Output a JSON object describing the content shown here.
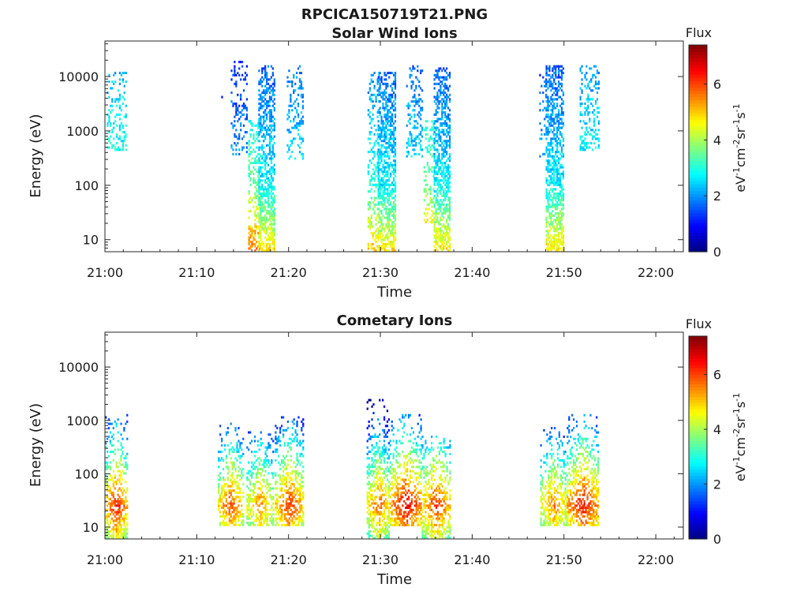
{
  "figure_title": "RPCICA150719T21.PNG",
  "chart_data": [
    {
      "type": "heatmap",
      "title": "Solar Wind Ions",
      "xlabel": "Time",
      "ylabel": "Energy (eV)",
      "x_ticks": [
        "21:00",
        "21:10",
        "21:20",
        "21:30",
        "21:40",
        "21:50",
        "22:00"
      ],
      "x_range_minutes": [
        0,
        63
      ],
      "y_ticks": [
        "10",
        "100",
        "1000",
        "10000"
      ],
      "y_scale": "log",
      "y_range": [
        6,
        45000
      ],
      "colorbar": {
        "label": "Flux",
        "unit": "eV-1cm-2sr-1s-1",
        "ticks": [
          "0",
          "2",
          "4",
          "6"
        ],
        "range": [
          0,
          7.4
        ],
        "colormap": "jet"
      },
      "grid": false,
      "bursts": [
        {
          "t_start": 0.2,
          "t_end": 2.3,
          "e_low": 400,
          "e_high": 12000,
          "flux": 2.8,
          "density": 0.35,
          "spread": 0
        },
        {
          "t_start": 12.5,
          "t_end": 12.8,
          "e_low": 3500,
          "e_high": 4500,
          "flux": 1.2,
          "density": 0.5,
          "spread": 0
        },
        {
          "t_start": 13.7,
          "t_end": 15.4,
          "e_low": 300,
          "e_high": 18000,
          "flux": 1.8,
          "density": 0.3,
          "spread": 0
        },
        {
          "t_start": 15.6,
          "t_end": 16.8,
          "e_low": 6,
          "e_high": 1500,
          "flux": 3.0,
          "density": 0.45,
          "spread": 0
        },
        {
          "t_start": 16.7,
          "t_end": 18.4,
          "e_low": 6,
          "e_high": 15000,
          "flux": 2.2,
          "density": 0.75,
          "spread": 0
        },
        {
          "t_start": 19.8,
          "t_end": 21.6,
          "e_low": 250,
          "e_high": 15000,
          "flux": 2.3,
          "density": 0.3,
          "spread": 0
        },
        {
          "t_start": 28.6,
          "t_end": 29.8,
          "e_low": 6,
          "e_high": 12000,
          "flux": 2.5,
          "density": 0.35,
          "spread": 0
        },
        {
          "t_start": 29.7,
          "t_end": 31.6,
          "e_low": 6,
          "e_high": 12000,
          "flux": 2.2,
          "density": 0.75,
          "spread": 0
        },
        {
          "t_start": 32.8,
          "t_end": 34.6,
          "e_low": 300,
          "e_high": 15000,
          "flux": 2.3,
          "density": 0.35,
          "spread": 0
        },
        {
          "t_start": 34.7,
          "t_end": 35.8,
          "e_low": 20,
          "e_high": 1500,
          "flux": 3.0,
          "density": 0.35,
          "spread": 0
        },
        {
          "t_start": 35.8,
          "t_end": 37.6,
          "e_low": 6,
          "e_high": 14000,
          "flux": 2.2,
          "density": 0.75,
          "spread": 0
        },
        {
          "t_start": 47.3,
          "t_end": 48.0,
          "e_low": 300,
          "e_high": 12000,
          "flux": 2.0,
          "density": 0.2,
          "spread": 0
        },
        {
          "t_start": 48.0,
          "t_end": 50.0,
          "e_low": 6,
          "e_high": 15000,
          "flux": 2.2,
          "density": 0.75,
          "spread": 0
        },
        {
          "t_start": 51.7,
          "t_end": 53.8,
          "e_low": 400,
          "e_high": 16000,
          "flux": 2.6,
          "density": 0.35,
          "spread": 0
        }
      ]
    },
    {
      "type": "heatmap",
      "title": "Cometary Ions",
      "xlabel": "Time",
      "ylabel": "Energy (eV)",
      "x_ticks": [
        "21:00",
        "21:10",
        "21:20",
        "21:30",
        "21:40",
        "21:50",
        "22:00"
      ],
      "x_range_minutes": [
        0,
        63
      ],
      "y_ticks": [
        "10",
        "100",
        "1000",
        "10000"
      ],
      "y_scale": "log",
      "y_range": [
        6,
        45000
      ],
      "colorbar": {
        "label": "Flux",
        "unit": "eV-1cm-2sr-1s-1",
        "ticks": [
          "0",
          "2",
          "4",
          "6"
        ],
        "range": [
          0,
          7.4
        ],
        "colormap": "jet"
      },
      "grid": false,
      "bursts": [
        {
          "t_start": 0,
          "t_end": 2.4,
          "e_low": 6,
          "e_high": 1200,
          "flux": 6.4,
          "density": 0.6,
          "spread": 2.6
        },
        {
          "t_start": 12.3,
          "t_end": 15.0,
          "e_low": 10,
          "e_high": 900,
          "flux": 6.0,
          "density": 0.6,
          "spread": 2.6
        },
        {
          "t_start": 15.4,
          "t_end": 18.3,
          "e_low": 10,
          "e_high": 600,
          "flux": 5.6,
          "density": 0.6,
          "spread": 2.6
        },
        {
          "t_start": 18.5,
          "t_end": 21.6,
          "e_low": 10,
          "e_high": 1200,
          "flux": 6.2,
          "density": 0.6,
          "spread": 2.6
        },
        {
          "t_start": 28.5,
          "t_end": 31.0,
          "e_low": 6,
          "e_high": 2500,
          "flux": 5.9,
          "density": 0.6,
          "spread": 2.6
        },
        {
          "t_start": 31.0,
          "t_end": 34.5,
          "e_low": 10,
          "e_high": 1200,
          "flux": 6.6,
          "density": 0.6,
          "spread": 2.6
        },
        {
          "t_start": 34.5,
          "t_end": 37.6,
          "e_low": 6,
          "e_high": 500,
          "flux": 6.2,
          "density": 0.6,
          "spread": 2.6
        },
        {
          "t_start": 47.4,
          "t_end": 50.3,
          "e_low": 10,
          "e_high": 700,
          "flux": 5.7,
          "density": 0.6,
          "spread": 2.6
        },
        {
          "t_start": 50.3,
          "t_end": 53.8,
          "e_low": 10,
          "e_high": 1200,
          "flux": 6.5,
          "density": 0.6,
          "spread": 2.6
        }
      ]
    }
  ]
}
